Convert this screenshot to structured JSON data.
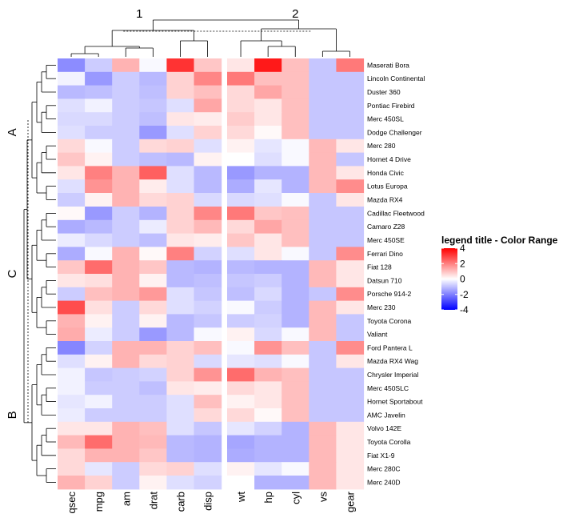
{
  "chart_data": {
    "type": "heatmap",
    "row_labels": [
      "Maserati Bora",
      "Lincoln Continental",
      "Duster 360",
      "Pontiac Firebird",
      "Merc 450SL",
      "Dodge Challenger",
      "Merc 280",
      "Hornet 4 Drive",
      "Honda Civic",
      "Lotus Europa",
      "Mazda RX4",
      "Cadillac Fleetwood",
      "Camaro Z28",
      "Merc 450SE",
      "Ferrari Dino",
      "Fiat 128",
      "Datsun 710",
      "Porsche 914-2",
      "Merc 230",
      "Toyota Corona",
      "Valiant",
      "Ford Pantera L",
      "Mazda RX4 Wag",
      "Chrysler Imperial",
      "Merc 450SLC",
      "Hornet Sportabout",
      "AMC Javelin",
      "Volvo 142E",
      "Toyota Corolla",
      "Fiat X1-9",
      "Merc 280C",
      "Merc 240D"
    ],
    "col_labels": [
      "qsec",
      "mpg",
      "am",
      "drat",
      "carb",
      "disp",
      "wt",
      "hp",
      "cyl",
      "vs",
      "gear"
    ],
    "row_groups": [
      {
        "label": "A",
        "count": 11
      },
      {
        "label": "C",
        "count": 10
      },
      {
        "label": "B",
        "count": 11
      }
    ],
    "col_groups": [
      {
        "label": "1",
        "count": 6
      },
      {
        "label": "2",
        "count": 5
      }
    ],
    "values": [
      [
        -1.8,
        -0.8,
        1.2,
        -0.1,
        3.2,
        0.9,
        0.4,
        3.6,
        1.0,
        -0.9,
        2.1
      ],
      [
        -0.2,
        -1.6,
        -0.8,
        -1.1,
        0.7,
        1.9,
        2.1,
        1.0,
        1.0,
        -0.9,
        -0.9
      ],
      [
        -1.1,
        -1.0,
        -0.8,
        -1.0,
        0.7,
        1.0,
        0.6,
        1.4,
        1.0,
        -0.9,
        -0.9
      ],
      [
        -0.5,
        -0.2,
        -0.8,
        -0.9,
        -0.5,
        1.4,
        0.6,
        0.4,
        1.0,
        -0.9,
        -0.9
      ],
      [
        -0.6,
        -0.6,
        -0.8,
        -1.0,
        0.4,
        0.3,
        0.8,
        0.4,
        1.0,
        -0.9,
        -0.9
      ],
      [
        -0.5,
        -0.8,
        -0.8,
        -1.6,
        -0.5,
        0.7,
        0.6,
        0.1,
        1.0,
        -0.9,
        -0.9
      ],
      [
        0.6,
        -0.1,
        -0.8,
        0.6,
        0.7,
        -0.5,
        0.2,
        -0.4,
        -0.1,
        1.1,
        0.4
      ],
      [
        0.9,
        0.2,
        -0.8,
        -1.0,
        -1.1,
        0.2,
        0.0,
        -0.5,
        -0.1,
        1.1,
        -0.9
      ],
      [
        0.4,
        2.0,
        1.2,
        2.5,
        -0.5,
        -1.1,
        -1.6,
        -1.2,
        -1.2,
        1.1,
        0.4
      ],
      [
        -0.5,
        1.7,
        1.2,
        0.3,
        -0.5,
        -1.1,
        -1.3,
        -0.4,
        -1.2,
        1.1,
        1.8
      ],
      [
        -0.8,
        0.2,
        1.2,
        0.6,
        0.7,
        -0.6,
        -0.6,
        -0.5,
        -0.1,
        -0.9,
        0.4
      ],
      [
        0.1,
        -1.6,
        -0.8,
        -1.2,
        0.7,
        1.9,
        2.1,
        0.9,
        1.0,
        -0.9,
        -0.9
      ],
      [
        -1.3,
        -1.1,
        -0.8,
        -0.3,
        0.7,
        1.1,
        0.6,
        1.4,
        1.0,
        -0.9,
        -0.9
      ],
      [
        -0.3,
        -0.6,
        -0.8,
        -1.0,
        0.4,
        0.3,
        0.9,
        0.4,
        1.0,
        -0.9,
        -0.9
      ],
      [
        -1.3,
        -0.1,
        1.2,
        0.1,
        2.0,
        -0.7,
        -0.5,
        0.4,
        -0.1,
        -0.9,
        1.8
      ],
      [
        0.9,
        2.3,
        1.2,
        0.9,
        -1.1,
        -1.2,
        -1.1,
        -1.2,
        -1.2,
        1.1,
        0.4
      ],
      [
        0.4,
        0.5,
        1.2,
        0.2,
        -1.1,
        -1.0,
        -0.9,
        -0.8,
        -1.2,
        1.1,
        0.4
      ],
      [
        -0.8,
        1.0,
        1.2,
        1.6,
        -0.5,
        -0.9,
        -1.0,
        -0.6,
        -1.2,
        -0.9,
        1.8
      ],
      [
        2.8,
        0.5,
        -0.8,
        0.6,
        -0.5,
        -0.7,
        -0.1,
        -0.8,
        -1.2,
        1.1,
        0.4
      ],
      [
        1.2,
        0.2,
        -0.8,
        0.2,
        -1.1,
        -0.9,
        -0.8,
        -0.7,
        -1.2,
        1.1,
        -0.9
      ],
      [
        1.3,
        -0.3,
        -0.8,
        -1.6,
        -1.1,
        -0.1,
        0.2,
        -0.6,
        -0.1,
        1.1,
        -0.9
      ],
      [
        -1.9,
        -0.7,
        1.2,
        1.2,
        0.7,
        1.0,
        -0.1,
        1.7,
        1.0,
        -0.9,
        1.8
      ],
      [
        -0.5,
        0.2,
        1.2,
        0.6,
        0.7,
        -0.6,
        -0.4,
        -0.5,
        -0.1,
        -0.9,
        0.4
      ],
      [
        -0.2,
        -0.9,
        -0.8,
        -0.7,
        0.7,
        1.7,
        2.3,
        1.2,
        1.0,
        -0.9,
        -0.9
      ],
      [
        -0.2,
        -0.8,
        -0.8,
        -1.0,
        0.4,
        0.3,
        0.6,
        0.4,
        1.0,
        -0.9,
        -0.9
      ],
      [
        -0.4,
        -0.2,
        -0.8,
        -0.8,
        -0.5,
        1.0,
        0.2,
        0.4,
        1.0,
        -0.9,
        -0.9
      ],
      [
        -0.3,
        -0.8,
        -0.8,
        -0.8,
        -0.5,
        0.6,
        0.6,
        0.1,
        1.0,
        -0.9,
        -0.9
      ],
      [
        0.4,
        0.4,
        1.2,
        1.0,
        -0.5,
        -0.9,
        -0.4,
        -0.7,
        -1.2,
        1.1,
        0.4
      ],
      [
        1.1,
        2.3,
        1.2,
        1.1,
        -1.1,
        -1.2,
        -1.4,
        -1.2,
        -1.2,
        1.1,
        0.4
      ],
      [
        0.6,
        1.2,
        1.2,
        0.9,
        -1.1,
        -1.2,
        -1.3,
        -1.2,
        -1.2,
        1.1,
        0.4
      ],
      [
        0.6,
        -0.4,
        -0.8,
        0.6,
        0.7,
        -0.5,
        0.2,
        -0.4,
        -0.1,
        1.1,
        0.4
      ],
      [
        1.2,
        0.7,
        -0.8,
        0.2,
        -0.5,
        -0.7,
        0.0,
        -1.2,
        -1.2,
        1.1,
        0.4
      ]
    ],
    "legend": {
      "title": "legend title - Color Range",
      "ticks": [
        4,
        2,
        0,
        -2,
        -4
      ],
      "tick_labels": [
        "4",
        "2",
        "0",
        "-2",
        "-4"
      ],
      "range": [
        -4,
        4
      ],
      "colors": {
        "low": "#0000ff",
        "mid": "#ffffff",
        "high": "#ff0000"
      }
    }
  }
}
